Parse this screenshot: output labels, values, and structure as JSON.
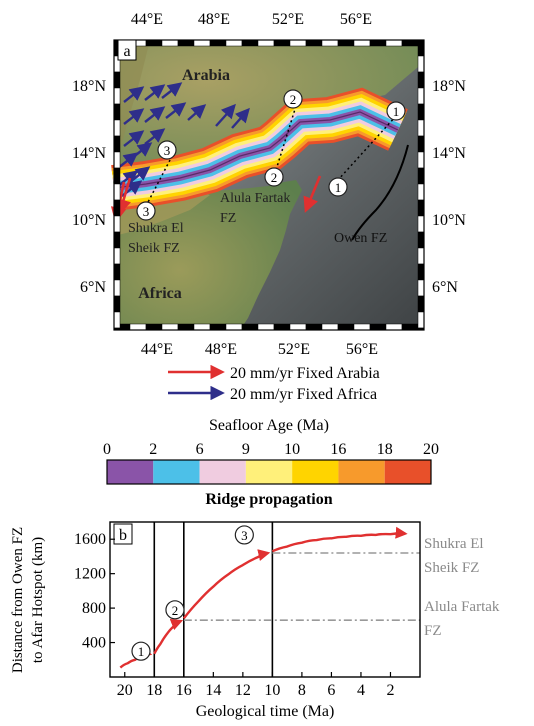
{
  "chart_data": [
    {
      "type": "map",
      "panel_label": "a",
      "x_ticks": [
        "44°E",
        "48°E",
        "52°E",
        "56°E"
      ],
      "y_ticks": [
        "18°N",
        "14°N",
        "10°N",
        "6°N"
      ],
      "regions": [
        "Arabia",
        "Africa"
      ],
      "fracture_zones": [
        "Shukra El Sheik FZ",
        "Alula Fartak FZ",
        "Owen FZ"
      ],
      "fz_labels": {
        "shukra_1": "Shukra El",
        "shukra_2": "Sheik FZ",
        "alula_1": "Alula Fartak",
        "alula_2": "FZ",
        "owen": "Owen FZ"
      },
      "circle_markers": [
        "1",
        "2",
        "3"
      ],
      "legend": [
        {
          "label": "20 mm/yr Fixed Arabia",
          "color": "#e03030"
        },
        {
          "label": "20 mm/yr Fixed Africa",
          "color": "#2e2e8a"
        }
      ]
    },
    {
      "type": "colorbar",
      "title": "Seafloor Age (Ma)",
      "ticks": [
        "0",
        "2",
        "6",
        "9",
        "10",
        "16",
        "18",
        "20"
      ],
      "colors": [
        "#8a54a8",
        "#4cc0e8",
        "#f0cce0",
        "#fff07a",
        "#ffd400",
        "#f79a2c",
        "#e8502a"
      ],
      "caption": "Ridge propagation"
    },
    {
      "type": "line",
      "panel_label": "b",
      "xlabel": "Geological time (Ma)",
      "ylabel_1": "Distance from Owen FZ",
      "ylabel_2": "to Afar Hotspot (km)",
      "x_ticks": [
        "20",
        "18",
        "16",
        "14",
        "12",
        "10",
        "8",
        "6",
        "4",
        "2"
      ],
      "y_ticks": [
        "400",
        "800",
        "1200",
        "1600"
      ],
      "xlim": [
        21,
        0
      ],
      "ylim": [
        0,
        1800
      ],
      "curve_color": "#e03030",
      "segments": [
        {
          "marker": "1",
          "x": [
            20.3,
            19.8,
            19.3,
            18.9,
            18.6,
            18.3
          ],
          "y": [
            110,
            160,
            200,
            235,
            255,
            265
          ]
        },
        {
          "marker": "2",
          "x": [
            18.0,
            17.6,
            17.1,
            16.6,
            16.2
          ],
          "y": [
            270,
            380,
            510,
            600,
            650
          ]
        },
        {
          "marker": "3",
          "x": [
            16.0,
            15.0,
            14.0,
            13.0,
            12.0,
            11.0,
            10.3
          ],
          "y": [
            680,
            880,
            1050,
            1190,
            1300,
            1390,
            1440
          ]
        },
        {
          "marker": "",
          "x": [
            10.0,
            9.0,
            8.0,
            7.0,
            6.0,
            5.0,
            4.0,
            3.0,
            2.0,
            1.0
          ],
          "y": [
            1460,
            1515,
            1560,
            1590,
            1610,
            1628,
            1640,
            1650,
            1658,
            1665
          ]
        }
      ],
      "vlines": [
        18,
        16,
        10
      ],
      "hlines": [
        {
          "y": 1440,
          "x_from": 10,
          "label_1": "Shukra El",
          "label_2": "Sheik FZ"
        },
        {
          "y": 660,
          "x_from": 16,
          "label_1": "Alula Fartak",
          "label_2": "FZ"
        }
      ],
      "marker_positions": [
        {
          "label": "1",
          "x": 18.9,
          "y": 300
        },
        {
          "label": "2",
          "x": 16.6,
          "y": 780
        },
        {
          "label": "3",
          "x": 11.9,
          "y": 1650
        }
      ]
    }
  ]
}
